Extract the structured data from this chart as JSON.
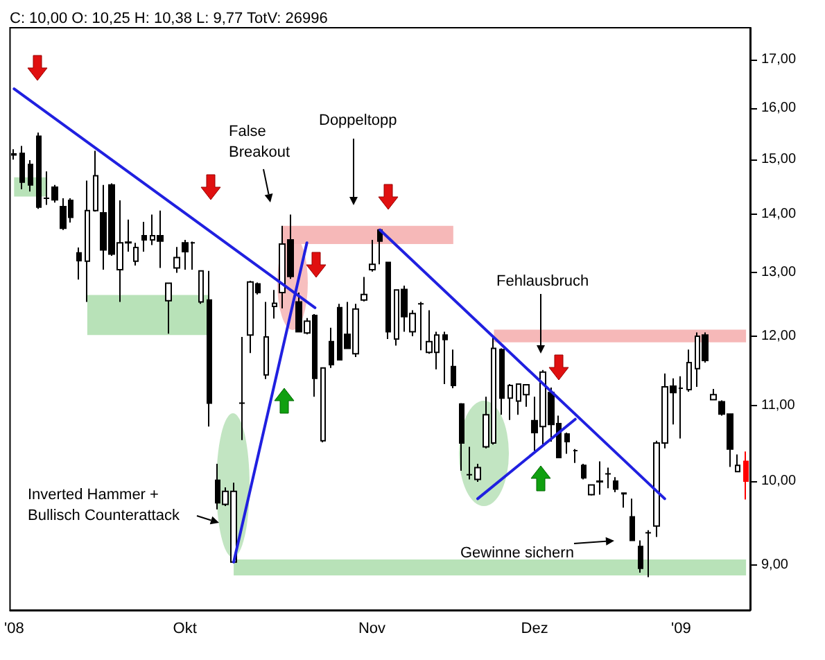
{
  "chart_data": {
    "type": "candlestick",
    "title": "C: 10,00 O: 10,25 H: 10,38 L: 9,77 TotV: 26996",
    "categories": [
      "'08",
      null,
      null,
      null,
      null,
      null,
      null,
      null,
      null,
      null,
      null,
      null,
      null,
      null,
      null,
      null,
      null,
      null,
      null,
      null,
      null,
      "Okt",
      null,
      null,
      null,
      null,
      null,
      null,
      null,
      null,
      null,
      null,
      null,
      null,
      null,
      null,
      null,
      null,
      null,
      null,
      null,
      null,
      null,
      null,
      "Nov",
      null,
      null,
      null,
      null,
      null,
      null,
      null,
      null,
      null,
      null,
      null,
      null,
      null,
      null,
      null,
      null,
      null,
      null,
      null,
      "Dez",
      null,
      null,
      null,
      null,
      null,
      null,
      null,
      null,
      null,
      null,
      null,
      null,
      null,
      null,
      null,
      null,
      null,
      "'09",
      null,
      null,
      null,
      null,
      null,
      null,
      null,
      null
    ],
    "ohlc": [
      [
        15.1,
        15.19,
        14.99,
        15.08
      ],
      [
        15.11,
        15.25,
        14.44,
        14.57
      ],
      [
        14.9,
        14.98,
        14.4,
        14.52
      ],
      [
        15.44,
        15.51,
        14.09,
        14.12
      ],
      [
        14.28,
        14.77,
        14.16,
        14.28
      ],
      [
        14.48,
        14.52,
        14.2,
        14.25
      ],
      [
        14.13,
        14.28,
        13.72,
        13.75
      ],
      [
        14.24,
        14.28,
        13.85,
        13.94
      ],
      [
        13.33,
        13.42,
        12.89,
        13.2
      ],
      [
        13.19,
        14.6,
        12.53,
        14.06
      ],
      [
        14.06,
        15.16,
        14.04,
        14.69
      ],
      [
        14.02,
        14.52,
        13.05,
        13.38
      ],
      [
        14.52,
        14.55,
        13.28,
        13.31
      ],
      [
        13.05,
        14.24,
        12.53,
        13.5
      ],
      [
        13.5,
        13.9,
        13.35,
        13.51
      ],
      [
        13.19,
        13.5,
        13.12,
        13.42
      ],
      [
        13.62,
        13.86,
        13.35,
        13.55
      ],
      [
        13.55,
        13.99,
        13.46,
        13.62
      ],
      [
        13.62,
        14.06,
        13.08,
        13.53
      ],
      [
        12.55,
        12.83,
        12.04,
        12.83
      ],
      [
        13.08,
        13.43,
        13.0,
        13.25
      ],
      [
        13.5,
        13.55,
        13.05,
        13.35
      ],
      [
        13.5,
        13.52,
        13.05,
        13.5
      ],
      [
        12.53,
        13.03,
        12.5,
        13.03
      ],
      [
        12.56,
        13.03,
        10.71,
        11.03
      ],
      [
        10.01,
        10.22,
        9.65,
        9.73
      ],
      [
        9.71,
        9.92,
        9.69,
        9.87
      ],
      [
        9.03,
        9.98,
        9.02,
        9.87
      ],
      [
        11.03,
        11.99,
        10.53,
        11.03
      ],
      [
        12.02,
        12.87,
        11.75,
        12.85
      ],
      [
        12.82,
        12.84,
        12.65,
        12.68
      ],
      [
        11.43,
        12.53,
        11.37,
        11.99
      ],
      [
        12.46,
        12.72,
        12.27,
        12.51
      ],
      [
        12.68,
        13.79,
        12.43,
        13.48
      ],
      [
        13.55,
        13.99,
        12.9,
        12.94
      ],
      [
        12.53,
        12.68,
        12.07,
        12.07
      ],
      [
        12.05,
        12.28,
        12.03,
        12.23
      ],
      [
        12.32,
        12.34,
        11.12,
        11.38
      ],
      [
        10.52,
        11.53,
        10.5,
        11.53
      ],
      [
        11.92,
        12.13,
        11.53,
        11.58
      ],
      [
        12.44,
        12.5,
        11.65,
        11.65
      ],
      [
        12.03,
        12.53,
        11.82,
        11.82
      ],
      [
        11.74,
        12.5,
        11.69,
        12.42
      ],
      [
        12.56,
        12.93,
        12.54,
        12.65
      ],
      [
        13.05,
        13.55,
        13.02,
        13.14
      ],
      [
        13.72,
        13.74,
        13.14,
        13.53
      ],
      [
        13.17,
        13.18,
        11.96,
        12.07
      ],
      [
        11.96,
        12.72,
        11.86,
        12.72
      ],
      [
        12.73,
        12.79,
        12.07,
        12.3
      ],
      [
        12.07,
        12.4,
        12.0,
        12.35
      ],
      [
        12.5,
        12.53,
        11.79,
        12.5
      ],
      [
        11.76,
        12.4,
        11.74,
        11.92
      ],
      [
        11.76,
        12.07,
        11.51,
        12.02
      ],
      [
        12.02,
        12.07,
        11.3,
        11.95
      ],
      [
        11.55,
        11.8,
        11.24,
        11.28
      ],
      [
        11.02,
        11.03,
        10.13,
        10.49
      ],
      [
        10.08,
        10.44,
        10.02,
        10.08
      ],
      [
        10.02,
        10.22,
        9.99,
        10.17
      ],
      [
        10.44,
        11.12,
        10.42,
        10.87
      ],
      [
        10.49,
        11.99,
        10.47,
        11.82
      ],
      [
        11.8,
        11.82,
        10.87,
        11.1
      ],
      [
        11.1,
        11.3,
        10.8,
        11.28
      ],
      [
        11.06,
        11.3,
        10.87,
        11.3
      ],
      [
        11.15,
        11.29,
        10.98,
        11.29
      ],
      [
        10.79,
        11.12,
        10.39,
        10.63
      ],
      [
        10.71,
        11.5,
        10.45,
        11.47
      ],
      [
        11.18,
        11.25,
        10.51,
        10.74
      ],
      [
        10.75,
        10.86,
        10.3,
        10.3
      ],
      [
        10.61,
        10.63,
        10.35,
        10.51
      ],
      [
        10.39,
        10.41,
        10.23,
        10.39
      ],
      [
        10.2,
        10.22,
        10.02,
        10.04
      ],
      [
        9.83,
        9.95,
        9.82,
        9.95
      ],
      [
        9.99,
        10.25,
        9.83,
        10.0
      ],
      [
        10.09,
        10.17,
        9.91,
        10.09
      ],
      [
        10.0,
        10.05,
        9.86,
        9.9
      ],
      [
        9.85,
        9.85,
        9.67,
        9.84
      ],
      [
        9.56,
        9.78,
        9.28,
        9.28
      ],
      [
        9.21,
        9.28,
        8.91,
        8.96
      ],
      [
        9.37,
        9.4,
        8.86,
        9.37
      ],
      [
        9.45,
        10.52,
        9.32,
        10.49
      ],
      [
        10.49,
        11.45,
        10.42,
        11.26
      ],
      [
        11.27,
        11.38,
        10.74,
        11.18
      ],
      [
        11.24,
        11.41,
        10.55,
        11.24
      ],
      [
        11.22,
        11.8,
        11.19,
        11.61
      ],
      [
        11.52,
        12.06,
        11.26,
        12.0
      ],
      [
        12.02,
        12.06,
        11.61,
        11.64
      ],
      [
        11.08,
        11.23,
        11.08,
        11.15
      ],
      [
        11.05,
        11.07,
        10.86,
        10.88
      ],
      [
        10.88,
        10.88,
        10.18,
        10.41
      ],
      [
        10.12,
        10.34,
        10.12,
        10.2
      ],
      [
        10.25,
        10.38,
        9.77,
        10.0
      ]
    ],
    "colors": [
      "#000000",
      "#000000",
      "#000000",
      "#000000",
      "#000000",
      "#000000",
      "#000000",
      "#000000",
      "#000000",
      "#ffffff",
      "#ffffff",
      "#000000",
      "#000000",
      "#ffffff",
      "#ffffff",
      "#ffffff",
      "#000000",
      "#ffffff",
      "#000000",
      "#ffffff",
      "#ffffff",
      "#000000",
      "#000000",
      "#ffffff",
      "#000000",
      "#000000",
      "#ffffff",
      "#ffffff",
      "#000000",
      "#ffffff",
      "#000000",
      "#ffffff",
      "#ffffff",
      "#ffffff",
      "#000000",
      "#000000",
      "#ffffff",
      "#000000",
      "#ffffff",
      "#000000",
      "#000000",
      "#000000",
      "#ffffff",
      "#ffffff",
      "#ffffff",
      "#000000",
      "#000000",
      "#ffffff",
      "#000000",
      "#ffffff",
      "#000000",
      "#ffffff",
      "#ffffff",
      "#000000",
      "#000000",
      "#000000",
      "#000000",
      "#ffffff",
      "#ffffff",
      "#ffffff",
      "#000000",
      "#ffffff",
      "#ffffff",
      "#ffffff",
      "#000000",
      "#ffffff",
      "#000000",
      "#000000",
      "#000000",
      "#000000",
      "#000000",
      "#ffffff",
      "#ffffff",
      "#000000",
      "#000000",
      "#000000",
      "#000000",
      "#000000",
      "#000000",
      "#ffffff",
      "#ffffff",
      "#000000",
      "#000000",
      "#ffffff",
      "#ffffff",
      "#000000",
      "#ffffff",
      "#000000",
      "#000000",
      "#ffffff",
      "#ff0000"
    ],
    "series": [
      {
        "type": "line",
        "color": "#2020e0",
        "values": [
          16.39,
          null,
          null,
          null,
          null,
          null,
          null,
          null,
          null,
          null,
          null,
          null,
          null,
          null,
          null,
          null,
          null,
          null,
          null,
          null,
          null,
          null,
          null,
          null,
          null,
          null,
          null,
          null,
          null,
          null,
          null,
          null,
          null,
          null,
          null,
          null,
          null,
          12.44,
          null,
          null,
          null,
          null,
          null,
          null,
          null,
          null,
          null,
          null,
          null,
          null,
          null,
          null,
          null,
          null,
          null,
          null,
          null,
          null,
          null,
          null,
          null,
          null,
          null,
          null,
          null,
          null,
          null,
          null,
          null,
          null,
          null,
          null,
          null,
          null,
          null,
          null,
          null,
          null,
          null,
          null,
          null,
          null,
          null,
          null,
          null,
          null,
          null,
          null,
          null,
          null,
          null
        ]
      },
      {
        "type": "line",
        "color": "#2020e0",
        "values": [
          null,
          null,
          null,
          null,
          null,
          null,
          null,
          null,
          null,
          null,
          null,
          null,
          null,
          null,
          null,
          null,
          null,
          null,
          null,
          null,
          null,
          null,
          null,
          null,
          null,
          null,
          null,
          9.03,
          null,
          null,
          null,
          null,
          null,
          null,
          null,
          null,
          13.5,
          null,
          null,
          null,
          null,
          null,
          null,
          null,
          null,
          null,
          null,
          null,
          null,
          null,
          null,
          null,
          null,
          null,
          null,
          null,
          null,
          null,
          null,
          null,
          null,
          null,
          null,
          null,
          null,
          null,
          null,
          null,
          null,
          null,
          null,
          null,
          null,
          null,
          null,
          null,
          null,
          null,
          null,
          null,
          null,
          null,
          null,
          null,
          null,
          null,
          null,
          null,
          null,
          null,
          null
        ]
      },
      {
        "type": "line",
        "color": "#2020e0",
        "values": [
          null,
          null,
          null,
          null,
          null,
          null,
          null,
          null,
          null,
          null,
          null,
          null,
          null,
          null,
          null,
          null,
          null,
          null,
          null,
          null,
          null,
          null,
          null,
          null,
          null,
          null,
          null,
          null,
          null,
          null,
          null,
          null,
          null,
          null,
          null,
          null,
          null,
          null,
          null,
          null,
          null,
          null,
          null,
          null,
          null,
          13.72,
          null,
          null,
          null,
          null,
          null,
          null,
          null,
          null,
          null,
          null,
          null,
          null,
          null,
          null,
          null,
          null,
          null,
          null,
          null,
          null,
          null,
          null,
          null,
          null,
          null,
          null,
          null,
          null,
          null,
          null,
          null,
          null,
          null,
          null,
          9.78,
          null,
          null,
          null,
          null,
          null,
          null,
          null,
          null,
          null,
          null
        ]
      },
      {
        "type": "line",
        "color": "#2020e0",
        "values": [
          null,
          null,
          null,
          null,
          null,
          null,
          null,
          null,
          null,
          null,
          null,
          null,
          null,
          null,
          null,
          null,
          null,
          null,
          null,
          null,
          null,
          null,
          null,
          null,
          null,
          null,
          null,
          null,
          null,
          null,
          null,
          null,
          null,
          null,
          null,
          null,
          null,
          null,
          null,
          null,
          null,
          null,
          null,
          null,
          null,
          null,
          null,
          null,
          null,
          null,
          null,
          null,
          null,
          null,
          null,
          null,
          null,
          9.78,
          null,
          null,
          null,
          null,
          null,
          null,
          null,
          null,
          null,
          null,
          null,
          10.81,
          null,
          null,
          null,
          null,
          null,
          null,
          null,
          null,
          null,
          null,
          null,
          null,
          null,
          null,
          null,
          null,
          null,
          null,
          null,
          null,
          null
        ]
      }
    ],
    "marker": "none",
    "line_style": "solid",
    "log": "y",
    "ylim": [
      8.5,
      17.7
    ],
    "yticks": [
      {
        "value": 9,
        "label": "9,00"
      },
      {
        "value": 10,
        "label": "10,00"
      },
      {
        "value": 11,
        "label": "11,00"
      },
      {
        "value": 12,
        "label": "12,00"
      },
      {
        "value": 13,
        "label": "13,00"
      },
      {
        "value": 14,
        "label": "14,00"
      },
      {
        "value": 15,
        "label": "15,00"
      },
      {
        "value": 16,
        "label": "16,00"
      },
      {
        "value": 17,
        "label": "17,00"
      }
    ],
    "bands": [
      {
        "axis": "y",
        "from": 14.31,
        "to": 14.66,
        "color": "#b8e2b8"
      },
      {
        "axis": "y",
        "from": 12.02,
        "to": 12.64,
        "color": "#b8e2b8"
      },
      {
        "axis": "y",
        "from": 13.48,
        "to": 13.79,
        "color": "#f6b8b8"
      },
      {
        "axis": "y",
        "from": 11.91,
        "to": 12.1,
        "color": "#f6b8b8"
      },
      {
        "axis": "y",
        "from": 8.88,
        "to": 9.06,
        "color": "#b8e2b8"
      }
    ],
    "annotations": [
      "False\nBreakout",
      "Doppeltopp",
      "Fehlausbruch",
      "Inverted Hammer +\nBullisch Counterattack",
      "Gewinne sichern"
    ],
    "grid": false
  }
}
